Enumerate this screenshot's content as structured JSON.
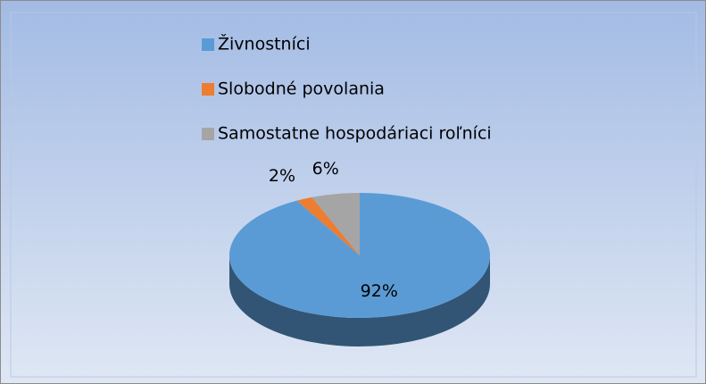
{
  "chart_data": {
    "type": "pie",
    "categories": [
      "Živnostníci",
      "Slobodné povolania",
      "Samostatne hospodáriaci roľníci"
    ],
    "values": [
      92,
      2,
      6
    ],
    "value_labels": [
      "92%",
      "2%",
      "6%"
    ],
    "colors": [
      "#5b9bd5",
      "#ed7d31",
      "#a5a5a5"
    ],
    "legend": "top"
  }
}
